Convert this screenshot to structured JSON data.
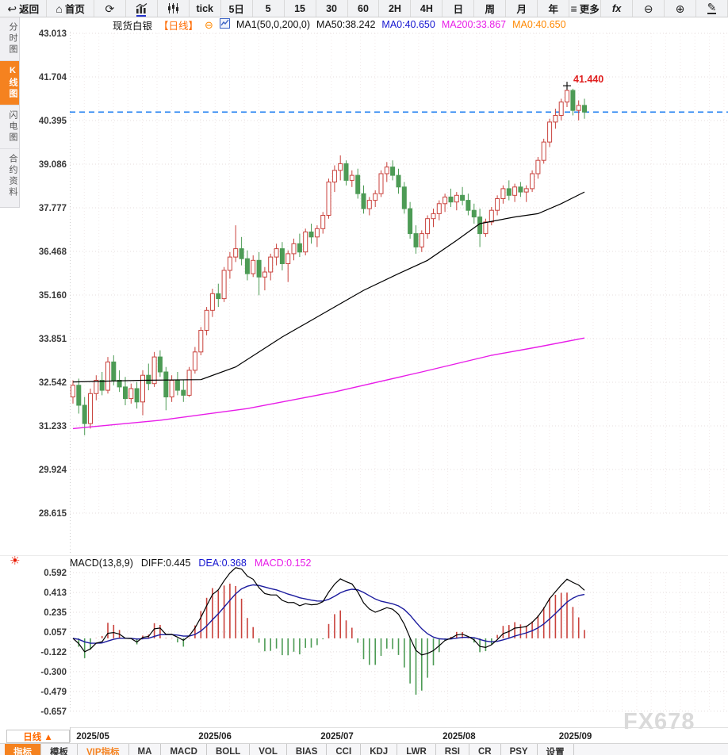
{
  "toolbar": {
    "items": [
      {
        "name": "back",
        "icon": "back-arrow",
        "label": "返回"
      },
      {
        "name": "home",
        "icon": "home",
        "label": "首页"
      },
      {
        "name": "refresh",
        "icon": "refresh",
        "label": ""
      },
      {
        "name": "bar-chart",
        "icon": "bar-chart",
        "label": ""
      },
      {
        "name": "candle-chart",
        "icon": "candle-chart",
        "label": ""
      },
      {
        "name": "tick",
        "label": "tick"
      },
      {
        "name": "5d",
        "label": "5日"
      },
      {
        "name": "5",
        "label": "5"
      },
      {
        "name": "15",
        "label": "15"
      },
      {
        "name": "30",
        "label": "30"
      },
      {
        "name": "60",
        "label": "60"
      },
      {
        "name": "2h",
        "label": "2H"
      },
      {
        "name": "4h",
        "label": "4H"
      },
      {
        "name": "day",
        "label": "日"
      },
      {
        "name": "week",
        "label": "周"
      },
      {
        "name": "month",
        "label": "月"
      },
      {
        "name": "year",
        "label": "年"
      },
      {
        "name": "more",
        "icon": "menu",
        "label": "更多"
      },
      {
        "name": "fx",
        "icon": "fx",
        "label": ""
      },
      {
        "name": "zoom-out",
        "icon": "zoom-out",
        "label": ""
      },
      {
        "name": "zoom-in",
        "icon": "zoom-in",
        "label": ""
      },
      {
        "name": "draw",
        "icon": "pencil",
        "label": ""
      }
    ]
  },
  "sidebar": {
    "items": [
      {
        "label": "分时图",
        "active": false
      },
      {
        "label": "K线图",
        "active": true
      },
      {
        "label": "闪电图",
        "active": false
      },
      {
        "label": "合约资料",
        "active": false
      }
    ]
  },
  "chart_header": {
    "symbol": "现货白银",
    "period": "【日线】",
    "collapse_icon": "⊖",
    "ma_settings": "MA1(50,0,200,0)",
    "ma50": "MA50:38.242",
    "ma0_blue": "MA0:40.650",
    "ma200": "MA200:33.867",
    "ma0_orange": "MA0:40.650"
  },
  "macd_header": {
    "title": "MACD(13,8,9)",
    "diff": "DIFF:0.445",
    "dea": "DEA:0.368",
    "macd": "MACD:0.152"
  },
  "price_axis": [
    "43.013",
    "41.704",
    "40.395",
    "39.086",
    "37.777",
    "36.468",
    "35.160",
    "33.851",
    "32.542",
    "31.233",
    "29.924",
    "28.615"
  ],
  "macd_axis": [
    "0.592",
    "0.413",
    "0.235",
    "0.057",
    "-0.122",
    "-0.300",
    "-0.479",
    "-0.657"
  ],
  "x_axis": {
    "period_button": "日线 ▲",
    "months": [
      "2025/05",
      "2025/06",
      "2025/07",
      "2025/08",
      "2025/09"
    ]
  },
  "bottom_tabs": [
    "指标",
    "模板",
    "VIP指标",
    "MA",
    "MACD",
    "BOLL",
    "VOL",
    "BIAS",
    "CCI",
    "KDJ",
    "LWR",
    "RSI",
    "CR",
    "PSY",
    "设置"
  ],
  "watermark": "FX678",
  "price_label": "41.440",
  "chart_data": {
    "type": "candlestick",
    "symbol": "现货白银",
    "period": "日线",
    "current_price": 40.65,
    "high_marker": {
      "index": 85,
      "price": 41.44,
      "label": "41.440"
    },
    "month_start_indices": [
      1,
      22,
      43,
      64,
      84
    ],
    "price_ticks": [
      43.013,
      41.704,
      40.395,
      39.086,
      37.777,
      36.468,
      35.16,
      33.851,
      32.542,
      31.233,
      29.924,
      28.615
    ],
    "macd_ticks": [
      0.592,
      0.413,
      0.235,
      0.057,
      -0.122,
      -0.3,
      -0.479,
      -0.657
    ],
    "macd_params": {
      "fast": 13,
      "slow": 8,
      "signal": 9,
      "diff": 0.445,
      "dea": 0.368,
      "macd": 0.152
    },
    "ma50_points": [
      [
        0,
        32.55
      ],
      [
        12,
        32.6
      ],
      [
        22,
        32.62
      ],
      [
        28,
        33.0
      ],
      [
        36,
        33.9
      ],
      [
        43,
        34.6
      ],
      [
        50,
        35.3
      ],
      [
        56,
        35.8
      ],
      [
        61,
        36.2
      ],
      [
        66,
        36.8
      ],
      [
        70,
        37.3
      ],
      [
        76,
        37.5
      ],
      [
        80,
        37.6
      ],
      [
        84,
        37.9
      ],
      [
        88,
        38.25
      ]
    ],
    "ma200_points": [
      [
        0,
        31.15
      ],
      [
        15,
        31.4
      ],
      [
        30,
        31.75
      ],
      [
        45,
        32.25
      ],
      [
        60,
        32.85
      ],
      [
        72,
        33.35
      ],
      [
        80,
        33.6
      ],
      [
        88,
        33.87
      ]
    ],
    "candles": [
      [
        32.1,
        32.6,
        31.9,
        32.45
      ],
      [
        32.45,
        32.65,
        31.6,
        31.85
      ],
      [
        31.85,
        32.1,
        30.95,
        31.3
      ],
      [
        31.3,
        32.35,
        31.15,
        32.2
      ],
      [
        32.2,
        32.75,
        32.0,
        32.6
      ],
      [
        32.6,
        32.85,
        32.15,
        32.3
      ],
      [
        32.3,
        33.3,
        32.2,
        33.15
      ],
      [
        33.15,
        33.35,
        32.45,
        32.6
      ],
      [
        32.6,
        32.9,
        32.25,
        32.4
      ],
      [
        32.4,
        32.7,
        31.85,
        32.05
      ],
      [
        32.05,
        32.5,
        31.9,
        32.35
      ],
      [
        32.35,
        32.55,
        31.75,
        31.95
      ],
      [
        31.95,
        32.9,
        31.55,
        32.75
      ],
      [
        32.75,
        33.1,
        32.3,
        32.5
      ],
      [
        32.5,
        33.45,
        32.4,
        33.3
      ],
      [
        33.3,
        33.5,
        32.7,
        32.85
      ],
      [
        32.85,
        33.0,
        31.7,
        32.1
      ],
      [
        32.1,
        32.75,
        31.95,
        32.6
      ],
      [
        32.6,
        32.85,
        32.15,
        32.3
      ],
      [
        32.3,
        32.6,
        31.95,
        32.15
      ],
      [
        32.15,
        33.0,
        32.1,
        32.9
      ],
      [
        32.9,
        33.6,
        32.8,
        33.45
      ],
      [
        33.45,
        34.2,
        33.35,
        34.1
      ],
      [
        34.1,
        34.8,
        33.95,
        34.7
      ],
      [
        34.7,
        35.35,
        34.5,
        35.2
      ],
      [
        35.2,
        35.5,
        34.8,
        35.05
      ],
      [
        35.05,
        36.0,
        34.95,
        35.9
      ],
      [
        35.9,
        36.45,
        35.65,
        36.3
      ],
      [
        36.3,
        37.25,
        36.15,
        36.55
      ],
      [
        36.55,
        36.9,
        36.05,
        36.25
      ],
      [
        36.25,
        36.5,
        35.6,
        35.8
      ],
      [
        35.8,
        36.35,
        35.7,
        36.2
      ],
      [
        36.2,
        36.45,
        35.15,
        35.7
      ],
      [
        35.7,
        36.0,
        35.3,
        35.85
      ],
      [
        35.85,
        36.4,
        35.6,
        36.3
      ],
      [
        36.3,
        36.7,
        36.05,
        36.55
      ],
      [
        36.55,
        36.75,
        35.9,
        36.1
      ],
      [
        36.1,
        36.5,
        35.55,
        36.4
      ],
      [
        36.4,
        36.85,
        36.2,
        36.7
      ],
      [
        36.7,
        37.0,
        36.3,
        36.45
      ],
      [
        36.45,
        37.15,
        36.35,
        37.05
      ],
      [
        37.05,
        37.3,
        36.7,
        36.9
      ],
      [
        36.9,
        37.25,
        36.6,
        37.15
      ],
      [
        37.15,
        37.65,
        37.0,
        37.55
      ],
      [
        37.55,
        38.65,
        37.45,
        38.55
      ],
      [
        38.55,
        39.05,
        38.25,
        38.9
      ],
      [
        38.9,
        39.35,
        38.6,
        39.1
      ],
      [
        39.1,
        39.2,
        38.45,
        38.6
      ],
      [
        38.6,
        38.9,
        38.4,
        38.75
      ],
      [
        38.75,
        38.95,
        38.05,
        38.2
      ],
      [
        38.2,
        38.45,
        37.6,
        37.75
      ],
      [
        37.75,
        38.1,
        37.55,
        38.0
      ],
      [
        38.0,
        38.3,
        37.8,
        38.2
      ],
      [
        38.2,
        38.9,
        38.1,
        38.8
      ],
      [
        38.8,
        39.15,
        38.55,
        39.0
      ],
      [
        39.0,
        39.2,
        38.6,
        38.75
      ],
      [
        38.75,
        38.95,
        38.2,
        38.4
      ],
      [
        38.4,
        38.55,
        37.6,
        37.75
      ],
      [
        37.75,
        37.95,
        36.85,
        37.0
      ],
      [
        37.0,
        37.25,
        36.4,
        36.6
      ],
      [
        36.6,
        37.1,
        36.45,
        37.0
      ],
      [
        37.0,
        37.55,
        36.85,
        37.45
      ],
      [
        37.45,
        37.75,
        37.2,
        37.6
      ],
      [
        37.6,
        38.0,
        37.4,
        37.9
      ],
      [
        37.9,
        38.2,
        37.65,
        38.1
      ],
      [
        38.1,
        38.35,
        37.8,
        37.95
      ],
      [
        37.95,
        38.25,
        37.7,
        38.15
      ],
      [
        38.15,
        38.4,
        37.85,
        38.0
      ],
      [
        38.0,
        38.2,
        37.55,
        37.7
      ],
      [
        37.7,
        37.9,
        37.3,
        37.5
      ],
      [
        37.5,
        37.75,
        36.6,
        37.0
      ],
      [
        37.0,
        37.45,
        36.9,
        37.35
      ],
      [
        37.35,
        37.8,
        37.25,
        37.7
      ],
      [
        37.7,
        38.15,
        37.55,
        38.05
      ],
      [
        38.05,
        38.45,
        37.9,
        38.35
      ],
      [
        38.35,
        38.6,
        38.0,
        38.15
      ],
      [
        38.15,
        38.5,
        37.95,
        38.4
      ],
      [
        38.4,
        38.55,
        38.1,
        38.25
      ],
      [
        38.25,
        38.45,
        37.95,
        38.35
      ],
      [
        38.35,
        38.9,
        38.25,
        38.8
      ],
      [
        38.8,
        39.3,
        38.65,
        39.2
      ],
      [
        39.2,
        39.85,
        39.1,
        39.75
      ],
      [
        39.75,
        40.45,
        39.6,
        40.35
      ],
      [
        40.35,
        40.75,
        40.15,
        40.55
      ],
      [
        40.55,
        41.05,
        40.4,
        40.95
      ],
      [
        40.95,
        41.44,
        40.8,
        41.3
      ],
      [
        41.3,
        41.35,
        40.55,
        40.7
      ],
      [
        40.7,
        41.0,
        40.4,
        40.85
      ],
      [
        40.85,
        41.05,
        40.45,
        40.65
      ]
    ],
    "colors": {
      "up": "#c9423c",
      "down": "#4d9b55",
      "ma50": "#000000",
      "ma200": "#e81ce8",
      "diff_line": "#000000",
      "dea_line": "#1b1b9e",
      "price_line": "#1f7ff2",
      "grid": "#e4dede",
      "vgrid": "#f2eaea",
      "marker": "#e02020",
      "accent": "#f5821f"
    }
  }
}
